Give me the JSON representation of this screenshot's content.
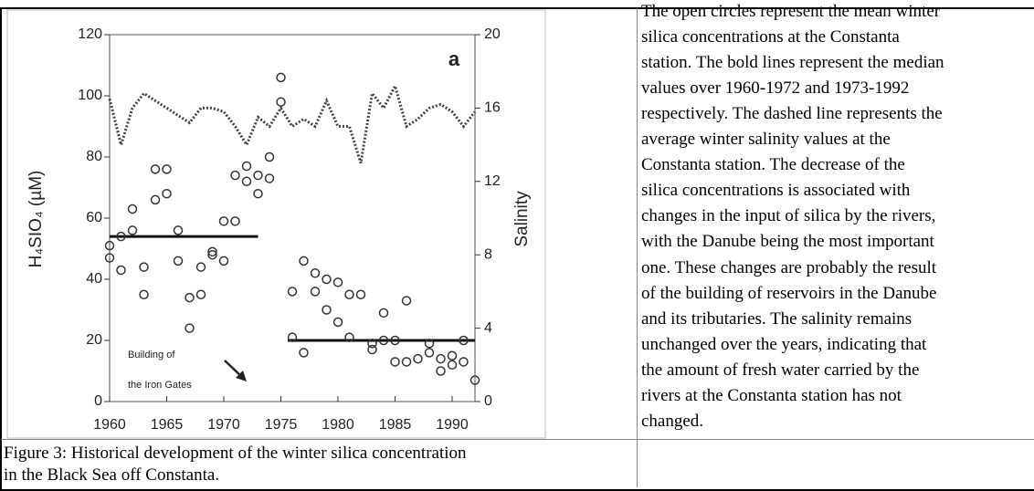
{
  "figure": {
    "chart_data": {
      "type": "scatter",
      "y_label": "H₄SIO₄ (µM)",
      "y2_label": "Salinity",
      "annotations": [
        "a",
        "Building of",
        "the Iron Gates"
      ],
      "x": [
        1960,
        1960,
        1961,
        1961,
        1962,
        1962,
        1963,
        1963,
        1964,
        1964,
        1965,
        1965,
        1966,
        1966,
        1967,
        1967,
        1968,
        1968,
        1969,
        1969,
        1970,
        1970,
        1971,
        1971,
        1972,
        1972,
        1973,
        1973,
        1974,
        1974,
        1975,
        1975,
        1976,
        1976,
        1977,
        1977,
        1978,
        1978,
        1979,
        1979,
        1980,
        1980,
        1981,
        1981,
        1982,
        1983,
        1983,
        1984,
        1984,
        1985,
        1985,
        1986,
        1986,
        1987,
        1988,
        1988,
        1989,
        1989,
        1990,
        1990,
        1991,
        1991,
        1992
      ],
      "values": [
        47,
        51,
        43,
        54,
        56,
        63,
        44,
        35,
        66,
        76,
        76,
        68,
        56,
        46,
        34,
        24,
        35,
        44,
        49,
        48,
        46,
        59,
        59,
        74,
        72,
        77,
        68,
        74,
        73,
        80,
        106,
        98,
        36,
        21,
        16,
        46,
        42,
        36,
        40,
        30,
        39,
        26,
        35,
        21,
        35,
        17,
        19,
        29,
        20,
        13,
        20,
        13,
        33,
        14,
        16,
        19,
        14,
        10,
        15,
        12,
        13,
        20,
        7
      ],
      "medians": [
        {
          "x": [
            1960,
            1973
          ],
          "value": 54
        },
        {
          "x": [
            1975.6,
            1992
          ],
          "value": 20
        }
      ],
      "salinity": {
        "axis": "y2",
        "x": [
          1960,
          1961,
          1962,
          1963,
          1964,
          1965,
          1966,
          1967,
          1968,
          1969,
          1970,
          1971,
          1972,
          1973,
          1974,
          1975,
          1976,
          1977,
          1978,
          1979,
          1980,
          1981,
          1982,
          1983,
          1984,
          1985,
          1986,
          1987,
          1988,
          1989,
          1990,
          1991,
          1992
        ],
        "values": [
          16.5,
          14,
          16,
          16.8,
          16.4,
          16,
          15.6,
          15.2,
          16,
          16,
          15.8,
          15,
          14,
          15.5,
          15,
          16,
          15,
          15.4,
          15,
          16.4,
          15,
          15,
          13,
          16.8,
          16,
          17.2,
          15,
          15.4,
          16,
          16.2,
          15.8,
          15,
          15.8
        ]
      },
      "xlim": [
        1960,
        1992
      ],
      "ylim": [
        0,
        120
      ],
      "y2lim": [
        0,
        20
      ],
      "xticks": [
        1960,
        1965,
        1970,
        1975,
        1980,
        1985,
        1990
      ],
      "yticks": [
        0,
        20,
        40,
        60,
        80,
        100,
        120
      ],
      "y2ticks": [
        0,
        4,
        8,
        12,
        16,
        20
      ]
    }
  },
  "text": {
    "lines": [
      "The open circles represent the mean winter",
      "silica concentrations at the Constanta",
      "station. The bold lines represent the median",
      "values over 1960-1972 and 1973-1992",
      "respectively. The dashed line represents the",
      "average winter salinity values at the",
      "Constanta station. The decrease of the",
      "silica concentrations is associated with",
      "changes in the input of silica by the rivers,",
      "with the Danube being the most important",
      "one. These changes are probably the result",
      "of the building of reservoirs in the Danube",
      "and its tributaries. The salinity remains",
      "unchanged over the years, indicating that",
      "the amount of fresh water carried by the",
      "rivers at the Constanta station has not",
      "changed."
    ]
  },
  "caption": {
    "lines": [
      "Figure 3: Historical development of the winter silica concentration",
      "in the Black Sea off Constanta."
    ]
  }
}
